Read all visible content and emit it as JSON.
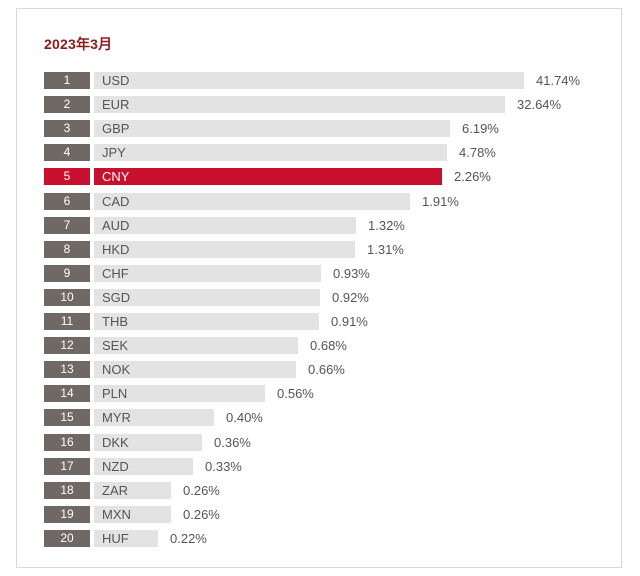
{
  "chart_data": {
    "type": "bar",
    "title": "2023年3月",
    "unit": "%",
    "highlight_color": "#c8102e",
    "bar_color": "#e3e3e3",
    "rank_color": "#6f6864",
    "highlight_rank": 5,
    "rows": [
      {
        "rank": "1",
        "code": "USD",
        "value": 41.74,
        "label": "41.74%"
      },
      {
        "rank": "2",
        "code": "EUR",
        "value": 32.64,
        "label": "32.64%"
      },
      {
        "rank": "3",
        "code": "GBP",
        "value": 6.19,
        "label": "6.19%"
      },
      {
        "rank": "4",
        "code": "JPY",
        "value": 4.78,
        "label": "4.78%"
      },
      {
        "rank": "5",
        "code": "CNY",
        "value": 2.26,
        "label": "2.26%"
      },
      {
        "rank": "6",
        "code": "CAD",
        "value": 1.91,
        "label": "1.91%"
      },
      {
        "rank": "7",
        "code": "AUD",
        "value": 1.32,
        "label": "1.32%"
      },
      {
        "rank": "8",
        "code": "HKD",
        "value": 1.31,
        "label": "1.31%"
      },
      {
        "rank": "9",
        "code": "CHF",
        "value": 0.93,
        "label": "0.93%"
      },
      {
        "rank": "10",
        "code": "SGD",
        "value": 0.92,
        "label": "0.92%"
      },
      {
        "rank": "11",
        "code": "THB",
        "value": 0.91,
        "label": "0.91%"
      },
      {
        "rank": "12",
        "code": "SEK",
        "value": 0.68,
        "label": "0.68%"
      },
      {
        "rank": "13",
        "code": "NOK",
        "value": 0.66,
        "label": "0.66%"
      },
      {
        "rank": "14",
        "code": "PLN",
        "value": 0.56,
        "label": "0.56%"
      },
      {
        "rank": "15",
        "code": "MYR",
        "value": 0.4,
        "label": "0.40%"
      },
      {
        "rank": "16",
        "code": "DKK",
        "value": 0.36,
        "label": "0.36%"
      },
      {
        "rank": "17",
        "code": "NZD",
        "value": 0.33,
        "label": "0.33%"
      },
      {
        "rank": "18",
        "code": "ZAR",
        "value": 0.26,
        "label": "0.26%"
      },
      {
        "rank": "19",
        "code": "MXN",
        "value": 0.26,
        "label": "0.26%"
      },
      {
        "rank": "20",
        "code": "HUF",
        "value": 0.22,
        "label": "0.22%"
      }
    ]
  }
}
